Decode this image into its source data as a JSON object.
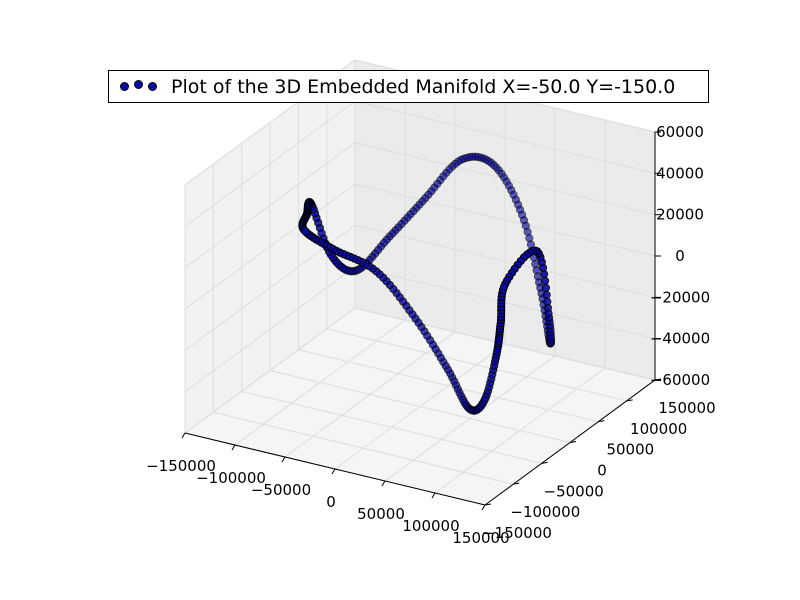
{
  "chart_data": {
    "type": "scatter",
    "projection": "3d",
    "legend": {
      "label": "Plot of the 3D Embedded Manifold X=-50.0 Y=-150.0",
      "placement": "top-center"
    },
    "series": [
      {
        "name": "Plot of the 3D Embedded Manifold X=-50.0 Y=-150.0",
        "marker": "circle",
        "color": "#0a0aa8",
        "edgecolor": "#000000",
        "points": [
          [
            -120000,
            20000,
            20000
          ],
          [
            -113000,
            0,
            20000
          ],
          [
            -99000,
            -30000,
            20000
          ],
          [
            -78000,
            -15000,
            10000
          ],
          [
            -55000,
            20000,
            -5000
          ],
          [
            -30000,
            45000,
            -30000
          ],
          [
            -6000,
            60000,
            -55000
          ],
          [
            18000,
            55000,
            -70000
          ],
          [
            42000,
            40000,
            -60000
          ],
          [
            68000,
            15000,
            -30000
          ],
          [
            92000,
            -20000,
            -5000
          ],
          [
            108000,
            -40000,
            20000
          ],
          [
            120000,
            -5000,
            30000
          ],
          [
            112000,
            30000,
            -10000
          ],
          [
            96000,
            60000,
            -30000
          ],
          [
            75000,
            80000,
            -10000
          ],
          [
            50000,
            92000,
            20000
          ],
          [
            20000,
            95000,
            40000
          ],
          [
            -10000,
            90000,
            40000
          ],
          [
            -40000,
            80000,
            20000
          ],
          [
            -70000,
            70000,
            0
          ],
          [
            -92000,
            50000,
            -15000
          ],
          [
            -106000,
            30000,
            -5000
          ],
          [
            -120000,
            20000,
            20000
          ]
        ]
      }
    ],
    "axes": {
      "x": {
        "ticks": [
          -150000,
          -100000,
          -50000,
          0,
          50000,
          100000,
          150000
        ],
        "tick_labels": [
          "−150000",
          "−100000",
          "−50000",
          "0",
          "50000",
          "100000",
          "150000"
        ],
        "range": [
          -150000,
          150000
        ]
      },
      "y": {
        "ticks": [
          -150000,
          -100000,
          -50000,
          0,
          50000,
          100000,
          150000
        ],
        "tick_labels": [
          "−150000",
          "−100000",
          "−50000",
          "0",
          "50000",
          "100000",
          "150000"
        ],
        "range": [
          -150000,
          150000
        ]
      },
      "z": {
        "ticks": [
          -60000,
          -40000,
          -20000,
          0,
          20000,
          40000,
          60000
        ],
        "tick_labels": [
          "−60000",
          "−40000",
          "−20000",
          "0",
          "20000",
          "40000",
          "60000"
        ],
        "range": [
          -60000,
          60000
        ]
      },
      "grid": true
    }
  }
}
